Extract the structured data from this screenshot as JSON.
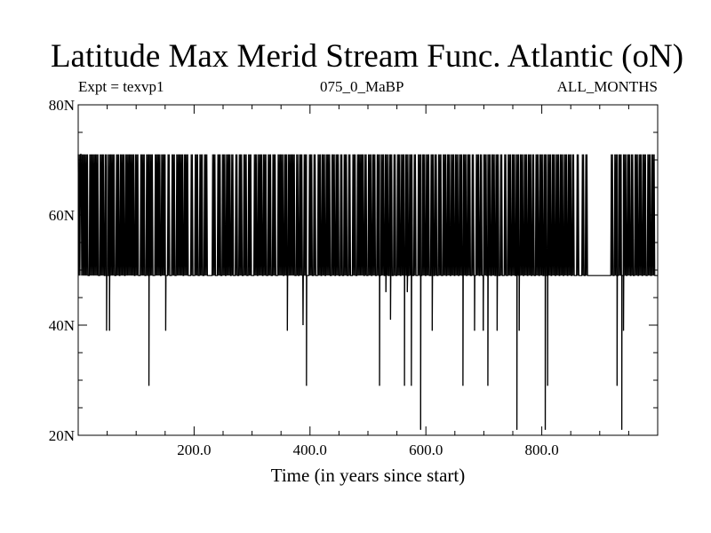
{
  "chart_data": {
    "type": "line",
    "title": "Latitude Max Merid Stream Func. Atlantic (oN)",
    "subtitle_left": "Expt = texvp1",
    "subtitle_center": "075_0_MaBP",
    "subtitle_right": "ALL_MONTHS",
    "xlabel": "Time (in years since start)",
    "ylabel": "",
    "xlim": [
      0,
      1000
    ],
    "ylim": [
      20,
      80
    ],
    "x_ticks": [
      {
        "value": 200,
        "label": "200.0"
      },
      {
        "value": 400,
        "label": "400.0"
      },
      {
        "value": 600,
        "label": "600.0"
      },
      {
        "value": 800,
        "label": "800.0"
      }
    ],
    "y_ticks": [
      {
        "value": 20,
        "label": "20N"
      },
      {
        "value": 40,
        "label": "40N"
      },
      {
        "value": 60,
        "label": "60N"
      },
      {
        "value": 80,
        "label": "80N"
      }
    ],
    "grid": false,
    "levels": {
      "high": 71,
      "typical": 49
    },
    "series": [
      {
        "color": "#000000",
        "high_segments": [
          [
            0,
            4
          ],
          [
            5,
            10
          ],
          [
            10,
            16
          ],
          [
            20,
            35
          ],
          [
            38,
            44
          ],
          [
            47,
            50
          ],
          [
            52,
            55
          ],
          [
            56,
            62
          ],
          [
            66,
            71
          ],
          [
            73,
            79
          ],
          [
            82,
            90
          ],
          [
            92,
            96
          ],
          [
            99,
            104
          ],
          [
            108,
            114
          ],
          [
            118,
            122
          ],
          [
            124,
            128
          ],
          [
            133,
            137
          ],
          [
            139,
            141
          ],
          [
            144,
            150
          ],
          [
            155,
            158
          ],
          [
            162,
            166
          ],
          [
            170,
            175
          ],
          [
            176,
            180
          ],
          [
            183,
            190
          ],
          [
            195,
            198
          ],
          [
            202,
            207
          ],
          [
            210,
            215
          ],
          [
            218,
            223
          ],
          [
            232,
            237
          ],
          [
            241,
            245
          ],
          [
            249,
            253
          ],
          [
            256,
            262
          ],
          [
            265,
            268
          ],
          [
            272,
            275
          ],
          [
            278,
            283
          ],
          [
            286,
            291
          ],
          [
            294,
            299
          ],
          [
            304,
            308
          ],
          [
            311,
            317
          ],
          [
            320,
            325
          ],
          [
            328,
            332
          ],
          [
            336,
            340
          ],
          [
            345,
            353
          ],
          [
            356,
            360
          ],
          [
            363,
            367
          ],
          [
            369,
            374
          ],
          [
            377,
            380
          ],
          [
            382,
            386
          ],
          [
            390,
            395
          ],
          [
            399,
            403
          ],
          [
            407,
            410
          ],
          [
            414,
            418
          ],
          [
            421,
            425
          ],
          [
            428,
            435
          ],
          [
            438,
            442
          ],
          [
            445,
            450
          ],
          [
            453,
            456
          ],
          [
            459,
            463
          ],
          [
            467,
            470
          ],
          [
            474,
            478
          ],
          [
            482,
            486
          ],
          [
            488,
            492
          ],
          [
            495,
            498
          ],
          [
            501,
            505
          ],
          [
            508,
            512
          ],
          [
            516,
            520
          ],
          [
            523,
            527
          ],
          [
            530,
            534
          ],
          [
            537,
            541
          ],
          [
            545,
            548
          ],
          [
            551,
            555
          ],
          [
            558,
            562
          ],
          [
            565,
            569
          ],
          [
            572,
            576
          ],
          [
            580,
            583
          ],
          [
            587,
            591
          ],
          [
            594,
            598
          ],
          [
            601,
            606
          ],
          [
            609,
            613
          ],
          [
            616,
            619
          ],
          [
            622,
            627
          ],
          [
            630,
            634
          ],
          [
            637,
            641
          ],
          [
            644,
            648
          ],
          [
            651,
            655
          ],
          [
            658,
            662
          ],
          [
            665,
            669
          ],
          [
            672,
            676
          ],
          [
            680,
            683
          ],
          [
            687,
            691
          ],
          [
            694,
            697
          ],
          [
            700,
            704
          ],
          [
            707,
            711
          ],
          [
            714,
            718
          ],
          [
            721,
            725
          ],
          [
            729,
            732
          ],
          [
            736,
            739
          ],
          [
            742,
            746
          ],
          [
            749,
            753
          ],
          [
            756,
            760
          ],
          [
            763,
            767
          ],
          [
            770,
            774
          ],
          [
            777,
            781
          ],
          [
            784,
            787
          ],
          [
            790,
            794
          ],
          [
            797,
            801
          ],
          [
            804,
            808
          ],
          [
            811,
            815
          ],
          [
            818,
            822
          ],
          [
            825,
            829
          ],
          [
            832,
            836
          ],
          [
            839,
            843
          ],
          [
            846,
            850
          ],
          [
            853,
            856
          ],
          [
            861,
            864
          ],
          [
            870,
            873
          ],
          [
            876,
            879
          ],
          [
            920,
            923
          ],
          [
            926,
            930
          ],
          [
            933,
            937
          ],
          [
            941,
            945
          ],
          [
            948,
            952
          ],
          [
            955,
            958
          ],
          [
            961,
            965
          ],
          [
            968,
            972
          ],
          [
            975,
            979
          ],
          [
            983,
            988
          ],
          [
            990,
            995
          ]
        ],
        "dips": [
          {
            "x": 49,
            "y": 39
          },
          {
            "x": 54,
            "y": 39
          },
          {
            "x": 122,
            "y": 29
          },
          {
            "x": 151,
            "y": 39
          },
          {
            "x": 361,
            "y": 39
          },
          {
            "x": 388,
            "y": 40
          },
          {
            "x": 394,
            "y": 29
          },
          {
            "x": 520,
            "y": 29
          },
          {
            "x": 531,
            "y": 46
          },
          {
            "x": 539,
            "y": 41
          },
          {
            "x": 563,
            "y": 29
          },
          {
            "x": 568,
            "y": 46
          },
          {
            "x": 575,
            "y": 29
          },
          {
            "x": 591,
            "y": 21
          },
          {
            "x": 611,
            "y": 39
          },
          {
            "x": 664,
            "y": 29
          },
          {
            "x": 684,
            "y": 39
          },
          {
            "x": 699,
            "y": 39
          },
          {
            "x": 707,
            "y": 29
          },
          {
            "x": 723,
            "y": 39
          },
          {
            "x": 757,
            "y": 21
          },
          {
            "x": 761,
            "y": 39
          },
          {
            "x": 806,
            "y": 21
          },
          {
            "x": 810,
            "y": 29
          },
          {
            "x": 930,
            "y": 29
          },
          {
            "x": 938,
            "y": 21
          },
          {
            "x": 941,
            "y": 39
          }
        ]
      }
    ]
  }
}
